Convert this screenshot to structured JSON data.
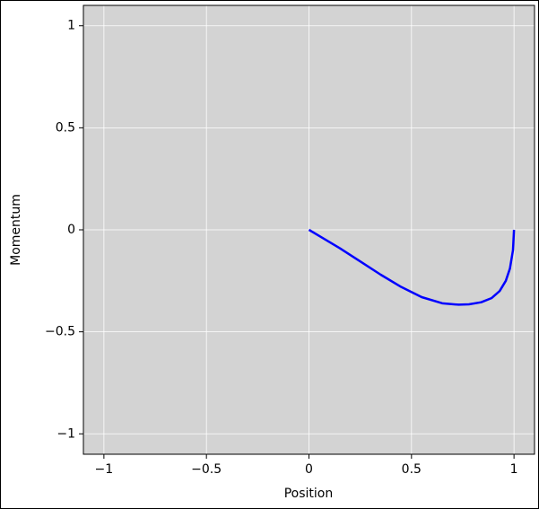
{
  "chart_data": {
    "type": "line",
    "xlabel": "Position",
    "ylabel": "Momentum",
    "x": [
      1,
      0.995,
      0.98,
      0.96,
      0.93,
      0.89,
      0.84,
      0.78,
      0.73,
      0.65,
      0.55,
      0.45,
      0.35,
      0.25,
      0.15,
      0.05,
      0
    ],
    "values": [
      0,
      -0.1,
      -0.19,
      -0.25,
      -0.3,
      -0.335,
      -0.355,
      -0.365,
      -0.367,
      -0.36,
      -0.33,
      -0.28,
      -0.22,
      -0.155,
      -0.09,
      -0.03,
      0
    ],
    "color": "#0000ff",
    "xlim": [
      -1.1,
      1.1
    ],
    "ylim": [
      -1.1,
      1.1
    ],
    "xticks": [
      {
        "value": -1,
        "label": "−1"
      },
      {
        "value": -0.5,
        "label": "−0.5"
      },
      0,
      0.5,
      1
    ],
    "yticks": [
      {
        "value": -1,
        "label": "−1"
      },
      {
        "value": -0.5,
        "label": "−0.5"
      },
      0,
      0.5,
      1
    ],
    "grid": true,
    "background": "#d3d3d3"
  }
}
